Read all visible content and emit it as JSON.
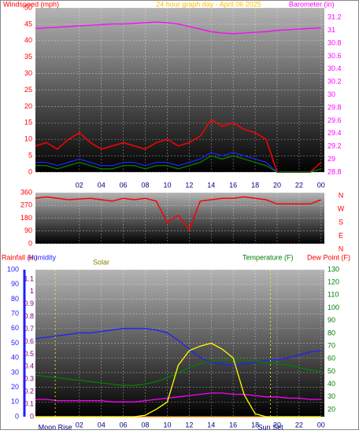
{
  "chart_data": [
    {
      "type": "line",
      "title": "24 hour graph day - April 06 2025",
      "ylabel": "Windspeed (mph)",
      "y2label": "Barometer (in)",
      "x": [
        -2,
        -1,
        0,
        1,
        2,
        3,
        4,
        5,
        6,
        7,
        8,
        9,
        10,
        11,
        12,
        13,
        14,
        15,
        16,
        17,
        18,
        19,
        20,
        21,
        22,
        23,
        24
      ],
      "xlim": [
        -2,
        24.3
      ],
      "xticks": [
        {
          "value": 2,
          "label": "02"
        },
        {
          "value": 4,
          "label": "04"
        },
        {
          "value": 6,
          "label": "06"
        },
        {
          "value": 8,
          "label": "08"
        },
        10,
        12,
        14,
        16,
        18,
        20,
        22,
        {
          "value": 24,
          "label": "00"
        }
      ],
      "ylim": [
        0,
        50
      ],
      "yticks": [
        0,
        5,
        10,
        15,
        20,
        25,
        30,
        35,
        40,
        45,
        50
      ],
      "y2lim": [
        28.8,
        31.35
      ],
      "y2ticks": [
        28.8,
        29,
        29.2,
        29.4,
        29.6,
        29.8,
        30,
        30.2,
        30.4,
        30.6,
        30.8,
        31,
        31.2
      ],
      "grid": true,
      "series": [
        {
          "color": "#ff0000",
          "values": [
            8,
            9,
            7,
            10,
            12,
            9,
            7,
            8,
            9,
            8,
            7,
            9,
            10,
            8,
            9,
            11,
            16,
            14,
            15,
            13,
            12,
            10,
            0,
            0,
            0,
            0,
            3
          ]
        },
        {
          "color": "#2020ff",
          "values": [
            3,
            3,
            2,
            3,
            4,
            3,
            2,
            2,
            3,
            3,
            2,
            3,
            3,
            2,
            3,
            4,
            6,
            5,
            6,
            5,
            4,
            3,
            0,
            0,
            0,
            0,
            1
          ]
        },
        {
          "color": "#008000",
          "values": [
            2,
            2,
            1,
            2,
            3,
            2,
            1,
            1,
            2,
            2,
            1,
            2,
            2,
            1,
            2,
            3,
            5,
            4,
            5,
            4,
            3,
            2,
            0,
            0,
            0,
            0,
            1
          ]
        },
        {
          "color": "#ff00ff",
          "axis": "y2",
          "values": [
            31.03,
            31.04,
            31.05,
            31.06,
            31.07,
            31.08,
            31.09,
            31.1,
            31.1,
            31.11,
            31.12,
            31.13,
            31.12,
            31.1,
            31.06,
            31.02,
            30.98,
            30.96,
            30.95,
            30.96,
            30.97,
            30.98,
            31.0,
            31.01,
            31.02,
            31.03,
            31.04
          ]
        }
      ]
    },
    {
      "type": "line",
      "compass": [
        "N",
        "W",
        "S",
        "E",
        "N"
      ],
      "x": [
        -2,
        -1,
        0,
        1,
        2,
        3,
        4,
        5,
        6,
        7,
        8,
        9,
        10,
        11,
        12,
        13,
        14,
        15,
        16,
        17,
        18,
        19,
        20,
        21,
        22,
        23,
        24
      ],
      "xlim": [
        -2,
        24.3
      ],
      "xticks": [
        2,
        4,
        6,
        8,
        10,
        12,
        14,
        16,
        18,
        20,
        22,
        24
      ],
      "ylim": [
        0,
        360
      ],
      "yticks": [
        0,
        90,
        180,
        270,
        360
      ],
      "grid": true,
      "series": [
        {
          "color": "#ff0000",
          "values": [
            320,
            330,
            320,
            310,
            315,
            320,
            310,
            300,
            320,
            310,
            320,
            300,
            150,
            200,
            100,
            300,
            310,
            320,
            320,
            330,
            320,
            310,
            280,
            280,
            280,
            280,
            310
          ]
        }
      ]
    },
    {
      "type": "line",
      "labels": [
        "Rainfall (in)",
        "Humidity",
        "Solar",
        "Temperature (F)",
        "Dew Point (F)"
      ],
      "annotations": [
        {
          "text": "Moon Rise",
          "x": -0.2
        },
        {
          "text": "Sun Set",
          "x": 19.4
        }
      ],
      "x": [
        -2,
        -1,
        0,
        1,
        2,
        3,
        4,
        5,
        6,
        7,
        8,
        9,
        10,
        11,
        12,
        13,
        14,
        15,
        16,
        17,
        18,
        19,
        20,
        21,
        22,
        23,
        24
      ],
      "xlim": [
        -2,
        24.3
      ],
      "xticks": [
        {
          "value": 2,
          "label": "02"
        },
        {
          "value": 4,
          "label": "04"
        },
        {
          "value": 6,
          "label": "06"
        },
        {
          "value": 8,
          "label": "08"
        },
        10,
        12,
        14,
        16,
        18,
        20,
        22,
        {
          "value": 24,
          "label": "00"
        }
      ],
      "ylim": [
        0,
        100
      ],
      "yticks": [
        0,
        10,
        20,
        30,
        40,
        50,
        60,
        70,
        80,
        90,
        100
      ],
      "y2lim": [
        14.4,
        130
      ],
      "y2ticks": [
        20,
        30,
        40,
        50,
        60,
        70,
        80,
        90,
        100,
        110,
        120,
        130
      ],
      "y3lim": [
        0,
        1.175
      ],
      "y3ticks": [
        0,
        0.1,
        0.2,
        0.3,
        0.4,
        0.5,
        0.6,
        0.7,
        0.8,
        0.9,
        1,
        1.1
      ],
      "grid": true,
      "series": [
        {
          "color": "#ff8c00",
          "axis": "y3",
          "values": [
            0,
            0,
            0,
            0,
            0,
            0,
            0,
            0,
            0,
            0,
            0,
            0,
            0,
            0,
            0,
            0,
            0,
            0,
            0,
            0,
            0,
            0,
            0,
            0,
            0,
            0,
            0
          ]
        },
        {
          "color": "#2020ff",
          "values": [
            53,
            54,
            55,
            56,
            57,
            57,
            58,
            59,
            60,
            60,
            60,
            59,
            57,
            52,
            46,
            40,
            37,
            36,
            35,
            36,
            37,
            38,
            39,
            40,
            42,
            44,
            45
          ]
        },
        {
          "color": "#008000",
          "axis": "y2",
          "values": [
            47,
            46,
            45,
            44,
            43,
            42,
            41,
            40,
            39,
            39,
            40,
            42,
            45,
            49,
            53,
            56,
            58,
            59,
            59,
            59,
            58,
            57,
            56,
            55,
            53,
            51,
            50
          ]
        },
        {
          "color": "#ff00ff",
          "axis": "y2",
          "values": [
            28,
            28,
            27,
            27,
            27,
            27,
            27,
            26,
            26,
            26,
            27,
            28,
            29,
            30,
            31,
            32,
            33,
            33,
            32,
            32,
            31,
            30,
            30,
            29,
            29,
            28,
            28
          ]
        },
        {
          "color": "#ffff00",
          "values": [
            0,
            0,
            0,
            0,
            0,
            0,
            0,
            0,
            0,
            0,
            1,
            5,
            10,
            35,
            45,
            48,
            50,
            46,
            40,
            15,
            2,
            0,
            0,
            0,
            0,
            0,
            0
          ]
        }
      ]
    }
  ]
}
